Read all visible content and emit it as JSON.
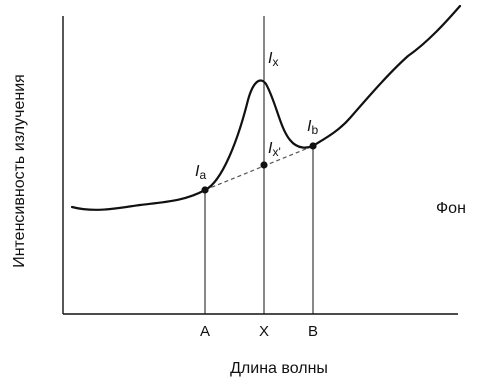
{
  "axes": {
    "x_title": "Длина волны",
    "y_title": "Интенсивность излучения"
  },
  "ticks": {
    "a": "A",
    "x": "X",
    "b": "B"
  },
  "labels": {
    "background": "Фон",
    "i_x": {
      "main": "I",
      "sub": "x"
    },
    "i_a": {
      "main": "I",
      "sub": "a"
    },
    "i_b": {
      "main": "I",
      "sub": "b"
    },
    "i_x_prime": {
      "main": "I",
      "sub": "x'"
    }
  }
}
